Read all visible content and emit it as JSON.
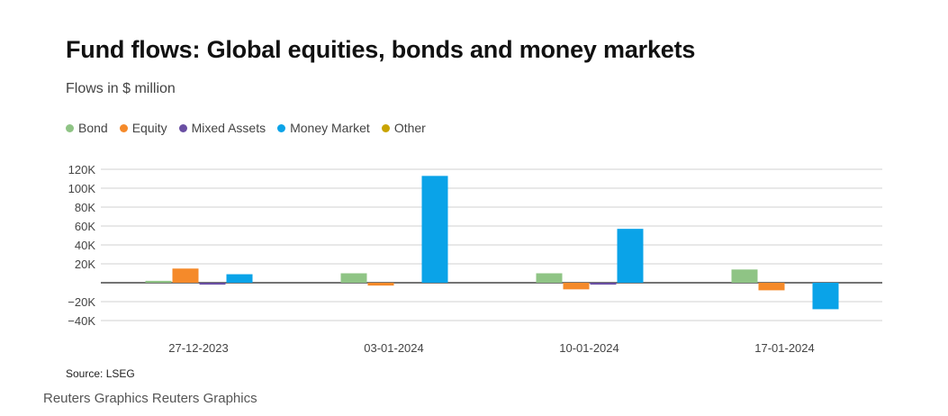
{
  "title": "Fund flows: Global equities, bonds and money markets",
  "subtitle": "Flows in $ million",
  "source": "Source: LSEG",
  "credit": "Reuters Graphics Reuters Graphics",
  "colors": {
    "Bond": "#8fc485",
    "Equity": "#f58a2a",
    "Mixed Assets": "#6a4fa3",
    "Money Market": "#0aa3e8",
    "Other": "#c9a400"
  },
  "chart_data": {
    "type": "bar",
    "categories": [
      "27-12-2023",
      "03-01-2024",
      "10-01-2024",
      "17-01-2024"
    ],
    "series": [
      {
        "name": "Bond",
        "values": [
          2000,
          10000,
          10000,
          14000
        ]
      },
      {
        "name": "Equity",
        "values": [
          15000,
          -3000,
          -7000,
          -8000
        ]
      },
      {
        "name": "Mixed Assets",
        "values": [
          -2000,
          null,
          -2000,
          null
        ]
      },
      {
        "name": "Money Market",
        "values": [
          9000,
          113000,
          57000,
          -28000
        ]
      },
      {
        "name": "Other",
        "values": [
          null,
          null,
          null,
          null
        ]
      }
    ],
    "ylim": [
      -40000,
      120000
    ],
    "yticks": [
      120000,
      100000,
      80000,
      60000,
      40000,
      20000,
      0,
      -20000,
      -40000
    ],
    "ytick_labels": [
      "120K",
      "100K",
      "80K",
      "60K",
      "40K",
      "20K",
      "",
      "−20K",
      "−40K"
    ],
    "legend_position": "top-left",
    "grid": true
  }
}
